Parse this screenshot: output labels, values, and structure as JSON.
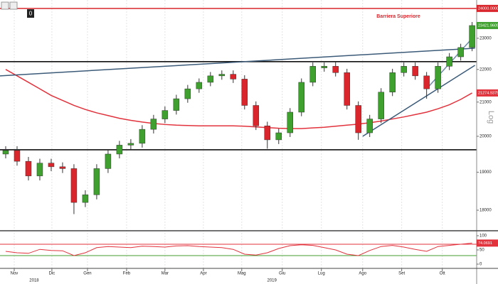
{
  "chart_data": {
    "type": "candlestick",
    "scale": "log",
    "toolbar": "0",
    "ylabel": "Log",
    "annotation": "Barriera Superiore",
    "up_color": "#3f9f2f",
    "down_color": "#d9262c",
    "grid": true,
    "open": [
      19500,
      19600,
      19300,
      18900,
      19250,
      19150,
      19100,
      18200,
      18400,
      19100,
      19500,
      19750,
      19800,
      20200,
      20500,
      20750,
      21100,
      21400,
      21600,
      21800,
      21850,
      21700,
      20900,
      20300,
      19900,
      20100,
      20700,
      21600,
      22050,
      22100,
      21900,
      20900,
      20100,
      20500,
      21300,
      21900,
      22100,
      21800,
      21400,
      22100,
      22400,
      22700
    ],
    "high": [
      19720,
      19720,
      19420,
      19370,
      19370,
      19270,
      19220,
      18520,
      19220,
      19620,
      19870,
      19920,
      20320,
      20620,
      20870,
      21220,
      21520,
      21720,
      21920,
      21970,
      21970,
      21820,
      21020,
      20420,
      20220,
      20820,
      21720,
      22220,
      22220,
      22250,
      22020,
      21020,
      20620,
      21420,
      22020,
      22220,
      22220,
      21920,
      22220,
      22520,
      22820,
      23540
    ],
    "low": [
      19380,
      19180,
      18780,
      18780,
      19030,
      18980,
      17900,
      18080,
      18280,
      18980,
      19380,
      19630,
      19680,
      20080,
      20380,
      20630,
      20980,
      21280,
      21480,
      21680,
      21580,
      20780,
      20180,
      19650,
      19780,
      19980,
      20580,
      21480,
      21930,
      21780,
      20780,
      19900,
      19980,
      20380,
      21180,
      21780,
      21680,
      21100,
      21280,
      21980,
      22280,
      22580
    ],
    "close": [
      19600,
      19300,
      18900,
      19250,
      19150,
      19100,
      18200,
      18400,
      19100,
      19500,
      19750,
      19800,
      20200,
      20500,
      20750,
      21100,
      21400,
      21600,
      21800,
      21850,
      21700,
      20900,
      20300,
      19900,
      20100,
      20700,
      21600,
      22100,
      22100,
      21900,
      20900,
      20100,
      20500,
      21300,
      21900,
      22100,
      21800,
      21400,
      22100,
      22400,
      22700,
      23421.9609
    ],
    "xlim": [
      -0.5,
      41.4
    ],
    "ylim": [
      17480,
      24290
    ],
    "yticks": [
      18000,
      19000,
      20000,
      21000,
      22000,
      23000,
      24000
    ],
    "xticks": [
      {
        "value": 0.75,
        "label": "Nov"
      },
      {
        "value": 4.06,
        "label": "Dic"
      },
      {
        "value": 7.19,
        "label": "Gen"
      },
      {
        "value": 10.63,
        "label": "Feb"
      },
      {
        "value": 14,
        "label": "Mar"
      },
      {
        "value": 17.38,
        "label": "Apr"
      },
      {
        "value": 20.75,
        "label": "Mag"
      },
      {
        "value": 24.31,
        "label": "Giu"
      },
      {
        "value": 27.75,
        "label": "Lug"
      },
      {
        "value": 31.38,
        "label": "Ago"
      },
      {
        "value": 34.81,
        "label": "Set"
      },
      {
        "value": 38.38,
        "label": "Ott"
      }
    ],
    "year_labels": [
      {
        "value": 2.5,
        "label": "2018"
      },
      {
        "value": 23.4,
        "label": "2019"
      }
    ],
    "moving_average": {
      "color": "#e2323c",
      "values": [
        22000,
        21800,
        21600,
        21400,
        21200,
        21050,
        20900,
        20780,
        20680,
        20600,
        20520,
        20460,
        20410,
        20370,
        20340,
        20320,
        20310,
        20300,
        20300,
        20300,
        20300,
        20290,
        20270,
        20250,
        20230,
        20220,
        20220,
        20240,
        20260,
        20290,
        20320,
        20350,
        20390,
        20440,
        20500,
        20560,
        20630,
        20700,
        20800,
        20920,
        21080,
        21274.9375
      ]
    },
    "levels": [
      {
        "value": 24000,
        "label": "24000.0000",
        "color": "#d9262c"
      },
      {
        "value": 22247,
        "color": "#111111"
      },
      {
        "value": 19619,
        "color": "#111111"
      }
    ],
    "trendlines": [
      {
        "x": [
          -0.5,
          41.25
        ],
        "y": [
          21800,
          22676
        ],
        "color": "#3a5a78"
      },
      {
        "x": [
          31.38,
          41.25
        ],
        "y": [
          20000,
          22130
        ],
        "color": "#3a5a78"
      },
      {
        "x": [
          37,
          41.25
        ],
        "y": [
          21400,
          23100
        ],
        "color": "#6f8aa6"
      }
    ],
    "rsi": {
      "type": "line",
      "color": "#e2323c",
      "ylim": [
        -15,
        115
      ],
      "yticks": [
        0,
        50,
        100
      ],
      "bands": [
        {
          "value": 70,
          "color": "#e2323c"
        },
        {
          "value": 30,
          "color": "#3f9f2f"
        }
      ],
      "values": [
        45,
        40,
        38,
        52,
        48,
        47,
        30,
        40,
        58,
        62,
        60,
        58,
        63,
        62,
        60,
        64,
        65,
        62,
        60,
        58,
        52,
        35,
        32,
        40,
        55,
        65,
        68,
        66,
        58,
        50,
        35,
        30,
        48,
        62,
        66,
        60,
        52,
        45,
        62,
        66,
        70,
        74.0691
      ]
    }
  }
}
